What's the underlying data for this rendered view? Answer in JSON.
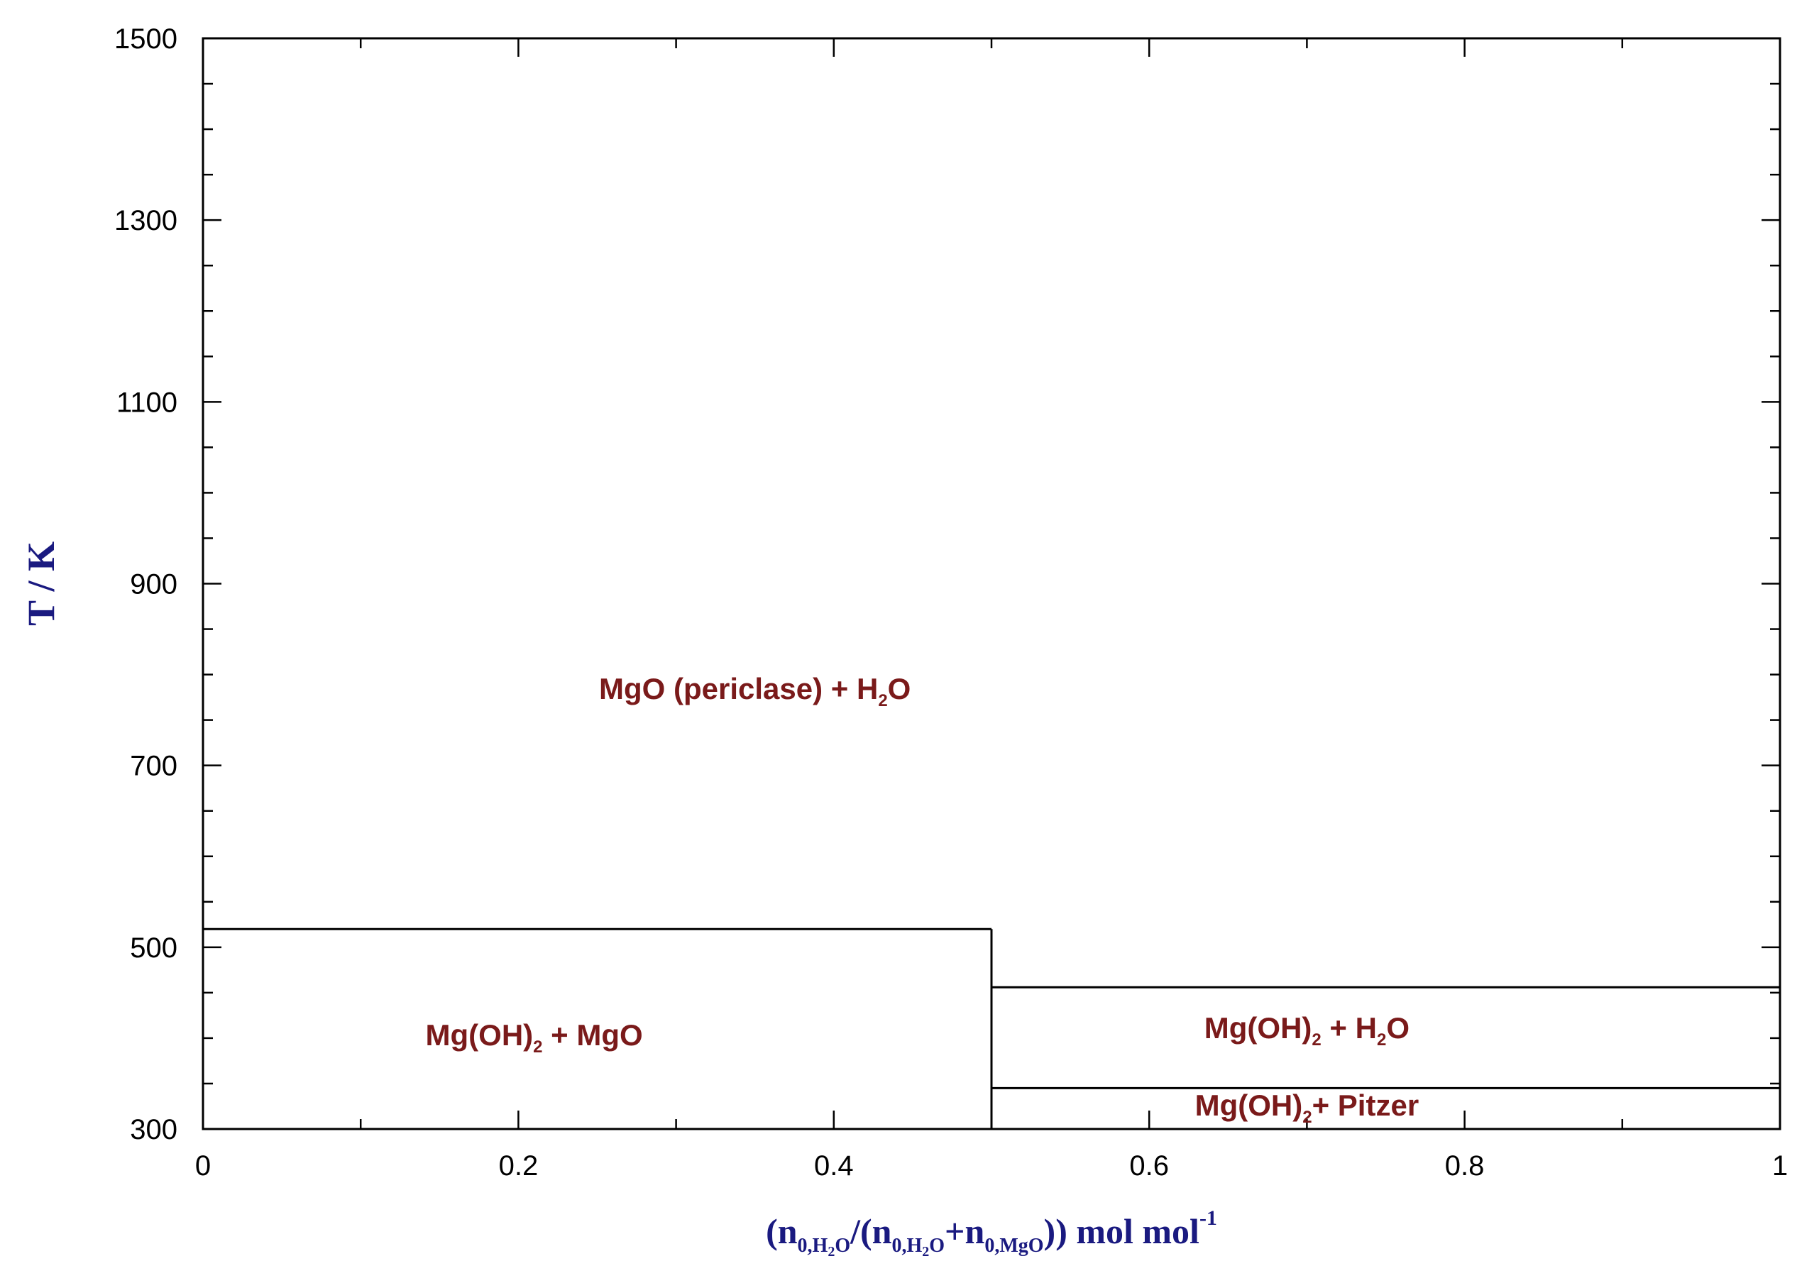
{
  "chart_data": {
    "type": "phase-diagram",
    "xlabel": {
      "parts": [
        "(n",
        "0,H",
        "2",
        "O",
        "/(n",
        "0,H",
        "2",
        "O",
        "+n",
        "0,MgO",
        ")) mol mol",
        "-1"
      ]
    },
    "ylabel": "T / K",
    "xlim": [
      0,
      1
    ],
    "ylim": [
      300,
      1500
    ],
    "x_ticks": [
      0,
      0.2,
      0.4,
      0.6,
      0.8,
      1
    ],
    "x_tick_labels": [
      "0",
      "0.2",
      "0.4",
      "0.6",
      "0.8",
      "1"
    ],
    "y_ticks": [
      300,
      500,
      700,
      900,
      1100,
      1300,
      1500
    ],
    "y_tick_labels": [
      "300",
      "500",
      "700",
      "900",
      "1100",
      "1300",
      "1500"
    ],
    "x_minor_step": 0.1,
    "y_minor_step": 50,
    "boundaries": [
      {
        "name": "mgoh2-mgo-upper",
        "points": [
          [
            0,
            520
          ],
          [
            0.5,
            520
          ]
        ]
      },
      {
        "name": "composition-divider",
        "points": [
          [
            0.5,
            300
          ],
          [
            0.5,
            520
          ]
        ]
      },
      {
        "name": "mgoh2-h2o-upper",
        "points": [
          [
            0.5,
            456
          ],
          [
            1,
            456
          ]
        ]
      },
      {
        "name": "pitzer-upper",
        "points": [
          [
            0.5,
            345
          ],
          [
            1,
            345
          ]
        ]
      }
    ],
    "regions": [
      {
        "parts": [
          "MgO (periclase) + H",
          "2",
          "O"
        ],
        "x": 0.35,
        "y": 773
      },
      {
        "parts": [
          "Mg(OH)",
          "2",
          " + MgO"
        ],
        "x": 0.21,
        "y": 392
      },
      {
        "parts": [
          "Mg(OH)",
          "2",
          " + H",
          "2",
          "O"
        ],
        "x": 0.7,
        "y": 400
      },
      {
        "parts": [
          "Mg(OH)",
          "2",
          "+ Pitzer"
        ],
        "x": 0.7,
        "y": 315
      }
    ]
  }
}
